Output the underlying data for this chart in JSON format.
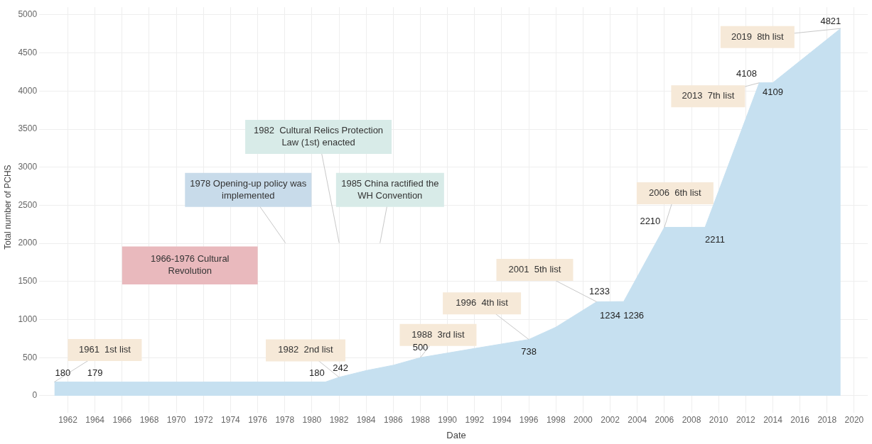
{
  "chart_data": {
    "type": "area",
    "xlabel": "Date",
    "ylabel": "Total number of PCHS",
    "x": [
      1961,
      1964,
      1981,
      1982,
      1984,
      1986,
      1988,
      1992,
      1996,
      1998,
      2001,
      2002,
      2003,
      2006,
      2009,
      2013,
      2014,
      2019
    ],
    "series": [
      {
        "color": "#c6e0f0",
        "values": [
          180,
          179,
          180,
          242,
          330,
          400,
          500,
          620,
          738,
          900,
          1233,
          1234,
          1236,
          2210,
          2211,
          4108,
          4109,
          4821
        ],
        "value_labels": [
          "180",
          "179",
          "180",
          "242",
          null,
          null,
          "500",
          null,
          "738",
          null,
          "1233",
          "1234",
          "1236",
          "2210",
          "2211",
          "4108",
          "4109",
          "4821"
        ]
      }
    ],
    "xlim": [
      1960.3,
      2021
    ],
    "xticks": [
      1962,
      1964,
      1966,
      1968,
      1970,
      1972,
      1974,
      1976,
      1978,
      1980,
      1982,
      1984,
      1986,
      1988,
      1990,
      1992,
      1994,
      1996,
      1998,
      2000,
      2002,
      2004,
      2006,
      2008,
      2010,
      2012,
      2014,
      2016,
      2018,
      2020
    ],
    "ylim": [
      -150,
      5100
    ],
    "yticks": [
      0,
      500,
      1000,
      1500,
      2000,
      2500,
      3000,
      3500,
      4000,
      4500,
      5000
    ],
    "grid": true,
    "legend": false,
    "annotations": [
      {
        "text": "1961  1st list",
        "x": 1961,
        "y": 180
      },
      "1978 Opening-up policy was implemented",
      "1982  Cultural Relics Protection Law (1st) enacted",
      "1985 China ractified the WH Convention",
      {
        "text": "1982  2nd list",
        "x": 1982,
        "y": 242
      },
      {
        "text": "1988  3rd list",
        "x": 1988,
        "y": 500
      },
      {
        "text": "1996  4th list",
        "x": 1996,
        "y": 738
      },
      {
        "text": "2001  5th list",
        "x": 2001,
        "y": 1233
      },
      {
        "text": "2006  6th list",
        "x": 2006,
        "y": 2210
      },
      {
        "text": "2013  7th list",
        "x": 2013,
        "y": 4108
      },
      {
        "text": "2019  8th list",
        "x": 2019,
        "y": 4821
      }
    ],
    "bands": [
      {
        "axis": "x",
        "from": 1966,
        "to": 1976,
        "label": "1966-1976 Cultural Revolution",
        "color": "#e9b9bd"
      }
    ]
  }
}
